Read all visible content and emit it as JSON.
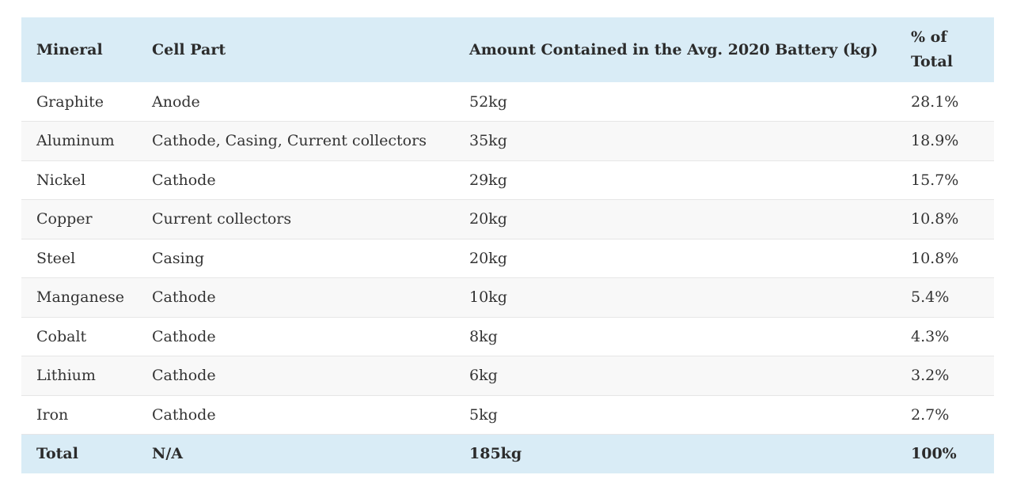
{
  "table": {
    "headers": {
      "mineral": "Mineral",
      "cell_part": "Cell Part",
      "amount": "Amount Contained in the Avg. 2020 Battery (kg)",
      "percent": "% of Total"
    },
    "rows": [
      {
        "mineral": "Graphite",
        "cell_part": "Anode",
        "amount": "52kg",
        "percent": "28.1%"
      },
      {
        "mineral": "Aluminum",
        "cell_part": "Cathode, Casing, Current collectors",
        "amount": "35kg",
        "percent": "18.9%"
      },
      {
        "mineral": "Nickel",
        "cell_part": "Cathode",
        "amount": "29kg",
        "percent": "15.7%"
      },
      {
        "mineral": "Copper",
        "cell_part": "Current collectors",
        "amount": "20kg",
        "percent": "10.8%"
      },
      {
        "mineral": "Steel",
        "cell_part": "Casing",
        "amount": "20kg",
        "percent": "10.8%"
      },
      {
        "mineral": "Manganese",
        "cell_part": "Cathode",
        "amount": "10kg",
        "percent": "5.4%"
      },
      {
        "mineral": "Cobalt",
        "cell_part": "Cathode",
        "amount": "8kg",
        "percent": "4.3%"
      },
      {
        "mineral": "Lithium",
        "cell_part": "Cathode",
        "amount": "6kg",
        "percent": "3.2%"
      },
      {
        "mineral": "Iron",
        "cell_part": "Cathode",
        "amount": "5kg",
        "percent": "2.7%"
      }
    ],
    "total": {
      "mineral": "Total",
      "cell_part": "N/A",
      "amount": "185kg",
      "percent": "100%"
    }
  },
  "colors": {
    "header_background": "#d9ecf6",
    "stripe_background": "#f8f8f8",
    "text": "#333333"
  }
}
